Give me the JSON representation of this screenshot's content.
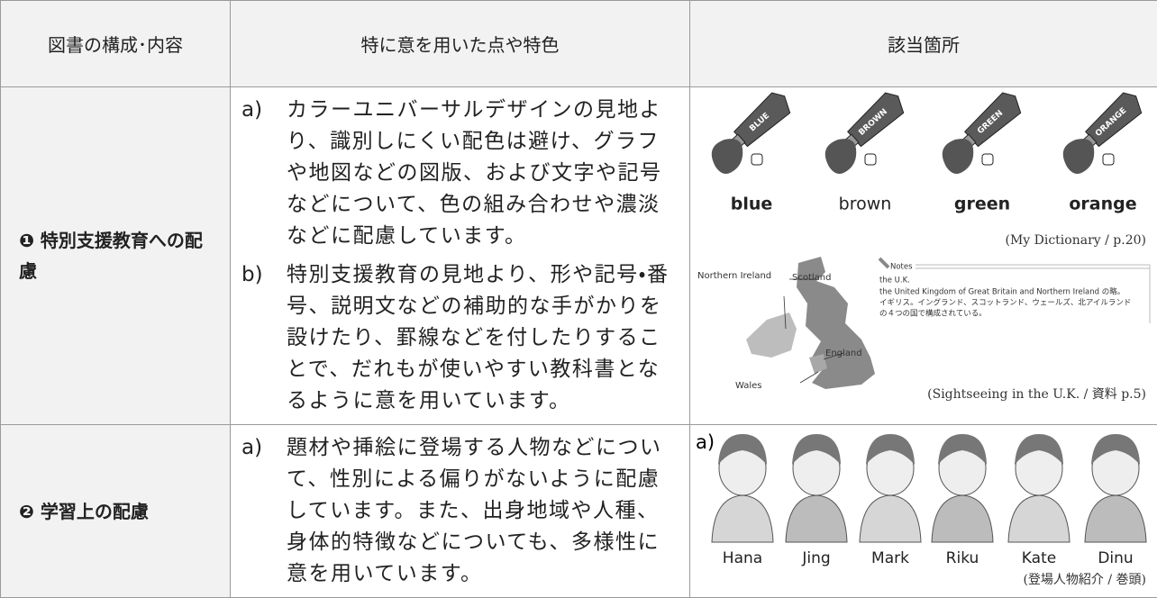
{
  "table": {
    "header": [
      "図書の構成･内容",
      "特に意を用いた点や特色",
      "該当箇所"
    ],
    "rows": [
      {
        "section": "❶ 特別支援教育への配慮",
        "points": [
          {
            "label": "a)",
            "text": "カラーユニバーサルデザインの見地より、識別しにくい配色は避け、グラフや地図などの図版、および文字や記号などについて、色の組み合わせや濃淡などに配慮しています。"
          },
          {
            "label": "b)",
            "text": "特別支援教育の見地より、形や記号・番号、説明文などの補助的な手がかりを設けたり、罫線などを付したりすることで、だれもが使いやすい教科書となるように意を用いています。"
          }
        ],
        "figures": {
          "tubes": [
            {
              "tube_label": "BLUE",
              "word": "blue"
            },
            {
              "tube_label": "BROWN",
              "word": "brown"
            },
            {
              "tube_label": "GREEN",
              "word": "green"
            },
            {
              "tube_label": "ORANGE",
              "word": "orange"
            }
          ],
          "dictionary_caption": "(My Dictionary / p.20)",
          "map_labels": [
            "Northern Ireland",
            "Scotland",
            "England",
            "Wales"
          ],
          "notes": {
            "heading": "Notes",
            "term": "the U.K.",
            "lines": [
              "the United Kingdom of Great Britain and Northern Ireland の略。",
              "イギリス。イングランド、スコットランド、ウェールズ、北アイルランド",
              "の４つの国で構成されている。"
            ]
          },
          "map_caption": "(Sightseeing in the U.K. / 資料 p.5)"
        }
      },
      {
        "section": "❷ 学習上の配慮",
        "points": [
          {
            "label": "a)",
            "text": "題材や挿絵に登場する人物などについて、性別による偏りがないように配慮しています。また、出身地域や人種、身体的特徴などについても、多様性に意を用いています。"
          }
        ],
        "figures": {
          "label": "a)",
          "characters": [
            "Hana",
            "Jing",
            "Mark",
            "Riku",
            "Kate",
            "Dinu"
          ],
          "caption": "(登場人物紹介 / 巻頭)"
        }
      }
    ]
  }
}
